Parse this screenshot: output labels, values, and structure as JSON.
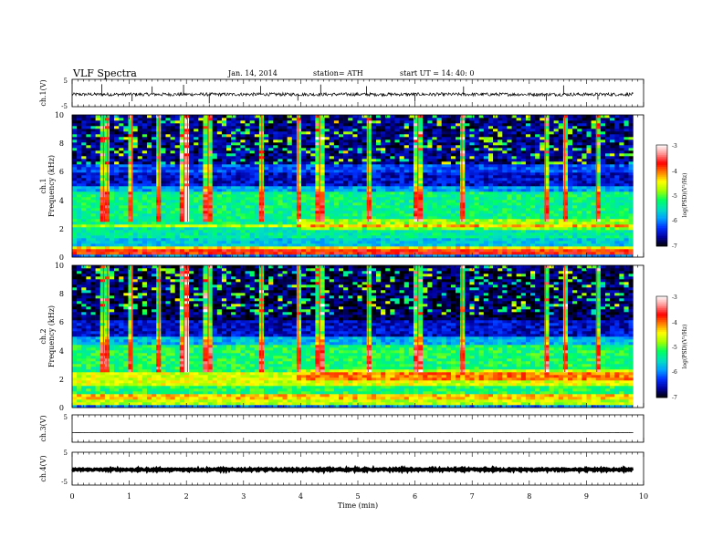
{
  "header": {
    "title": "VLF  Spectra",
    "date": "Jan. 14, 2014",
    "station": "station= ATH",
    "start": "start  UT  =   14: 40: 0"
  },
  "colors": {
    "background": "#ffffff",
    "axis": "#000000",
    "waveform": "#000000",
    "colormap": [
      "#000000",
      "#0000a0",
      "#0030ff",
      "#00a0ff",
      "#00e0c0",
      "#00ff60",
      "#a0ff00",
      "#ffff00",
      "#ff8000",
      "#ff0000",
      "#ff9090",
      "#ffffff"
    ]
  },
  "chart_data": [
    {
      "type": "line",
      "name": "ch1-waveform-panel",
      "ylabel": "ch.1(V)",
      "yticks": [
        "5",
        "-5"
      ],
      "ylim": [
        -5,
        5
      ],
      "xlim": [
        0,
        10
      ],
      "time_span_min": [
        0,
        9.82
      ],
      "baseline_v": -0.5,
      "noise_amplitude_v": 0.6,
      "spikes": [
        {
          "x": 0.52,
          "y": 3.2
        },
        {
          "x": 1.05,
          "y": -3.0
        },
        {
          "x": 1.4,
          "y": 2.4
        },
        {
          "x": 1.95,
          "y": 3.0
        },
        {
          "x": 2.4,
          "y": -3.8
        },
        {
          "x": 3.3,
          "y": 2.6
        },
        {
          "x": 3.95,
          "y": -2.8
        },
        {
          "x": 4.35,
          "y": 3.1
        },
        {
          "x": 5.15,
          "y": 2.5
        },
        {
          "x": 6.0,
          "y": -3.2
        },
        {
          "x": 6.85,
          "y": 2.4
        },
        {
          "x": 8.3,
          "y": -2.8
        },
        {
          "x": 8.6,
          "y": 2.8
        },
        {
          "x": 9.2,
          "y": -2.4
        }
      ]
    },
    {
      "type": "heatmap",
      "name": "ch1-spectrogram",
      "ylabel": "ch.1\nFrequency  (kHz)",
      "yticks": [
        "0",
        "2",
        "4",
        "6",
        "8",
        "10"
      ],
      "ylim": [
        0,
        10
      ],
      "xlim": [
        0,
        10
      ],
      "time_span_min": [
        0,
        9.82
      ],
      "colorbar": {
        "label": "log(PSD)(V²/Hz)",
        "ticks": [
          "-3",
          "-4",
          "-5",
          "-6",
          "-7"
        ],
        "range": [
          -7,
          -3
        ]
      },
      "freq_profile_khz": [
        {
          "f_from": 0.0,
          "f_to": 0.25,
          "log_psd": -6.0
        },
        {
          "f_from": 0.25,
          "f_to": 0.5,
          "log_psd": -3.8
        },
        {
          "f_from": 0.5,
          "f_to": 0.8,
          "log_psd": -4.4
        },
        {
          "f_from": 0.8,
          "f_to": 1.4,
          "log_psd": -5.7
        },
        {
          "f_from": 1.4,
          "f_to": 2.2,
          "log_psd": -5.4
        },
        {
          "f_from": 2.2,
          "f_to": 2.4,
          "log_psd": -4.7
        },
        {
          "f_from": 2.4,
          "f_to": 4.6,
          "log_psd": -5.3
        },
        {
          "f_from": 4.6,
          "f_to": 5.0,
          "log_psd": -5.9
        },
        {
          "f_from": 5.0,
          "f_to": 6.0,
          "log_psd": -6.5
        },
        {
          "f_from": 6.0,
          "f_to": 6.6,
          "log_psd": -6.2
        },
        {
          "f_from": 6.6,
          "f_to": 10.0,
          "log_psd": -6.7
        }
      ],
      "step_change_min": 3.95,
      "spheric_times_min": [
        0.55,
        0.62,
        1.05,
        1.52,
        1.96,
        2.02,
        2.38,
        3.32,
        3.95,
        4.33,
        5.18,
        6.05,
        6.82,
        8.28,
        8.62,
        9.18
      ]
    },
    {
      "type": "heatmap",
      "name": "ch2-spectrogram",
      "ylabel": "ch.2\nFrequency  (kHz)",
      "yticks": [
        "0",
        "2",
        "4",
        "6",
        "8",
        "10"
      ],
      "ylim": [
        0,
        10
      ],
      "xlim": [
        0,
        10
      ],
      "time_span_min": [
        0,
        9.82
      ],
      "colorbar": {
        "label": "log(PSD)(V²/Hz)",
        "ticks": [
          "-3",
          "-4",
          "-5",
          "-6",
          "-7"
        ],
        "range": [
          -7,
          -3
        ]
      },
      "freq_profile_khz": [
        {
          "f_from": 0.0,
          "f_to": 0.25,
          "log_psd": -6.0
        },
        {
          "f_from": 0.25,
          "f_to": 0.6,
          "log_psd": -4.7
        },
        {
          "f_from": 0.6,
          "f_to": 1.0,
          "log_psd": -4.3
        },
        {
          "f_from": 1.0,
          "f_to": 1.6,
          "log_psd": -5.2
        },
        {
          "f_from": 1.6,
          "f_to": 2.5,
          "log_psd": -4.6
        },
        {
          "f_from": 2.5,
          "f_to": 4.4,
          "log_psd": -5.2
        },
        {
          "f_from": 4.4,
          "f_to": 5.0,
          "log_psd": -5.8
        },
        {
          "f_from": 5.0,
          "f_to": 6.2,
          "log_psd": -6.5
        },
        {
          "f_from": 6.2,
          "f_to": 10.0,
          "log_psd": -6.8
        }
      ],
      "step_change_min": 3.95,
      "spheric_times_min": [
        0.55,
        0.62,
        1.05,
        1.52,
        1.96,
        2.02,
        2.38,
        3.32,
        3.95,
        4.33,
        5.18,
        6.05,
        6.82,
        8.28,
        8.62,
        9.18
      ]
    },
    {
      "type": "line",
      "name": "ch3-waveform-panel",
      "ylabel": "ch.3(V)",
      "yticks": [
        "5"
      ],
      "ylim": [
        -5,
        5
      ],
      "xlim": [
        0,
        10
      ],
      "time_span_min": [
        0,
        9.82
      ],
      "baseline_v": -1.5,
      "noise_amplitude_v": 0.05
    },
    {
      "type": "line",
      "name": "ch4-waveform-panel",
      "ylabel": "ch.4(V)",
      "yticks": [
        "5",
        "-5"
      ],
      "ylim": [
        -5,
        5
      ],
      "xlim": [
        0,
        10
      ],
      "time_span_min": [
        0,
        9.82
      ],
      "baseline_v": -0.3,
      "noise_amplitude_v": 0.25
    }
  ],
  "xaxis": {
    "label": "Time  (min)",
    "ticks": [
      "0",
      "1",
      "2",
      "3",
      "4",
      "5",
      "6",
      "7",
      "8",
      "9",
      "10"
    ],
    "xlim": [
      0,
      10
    ]
  }
}
